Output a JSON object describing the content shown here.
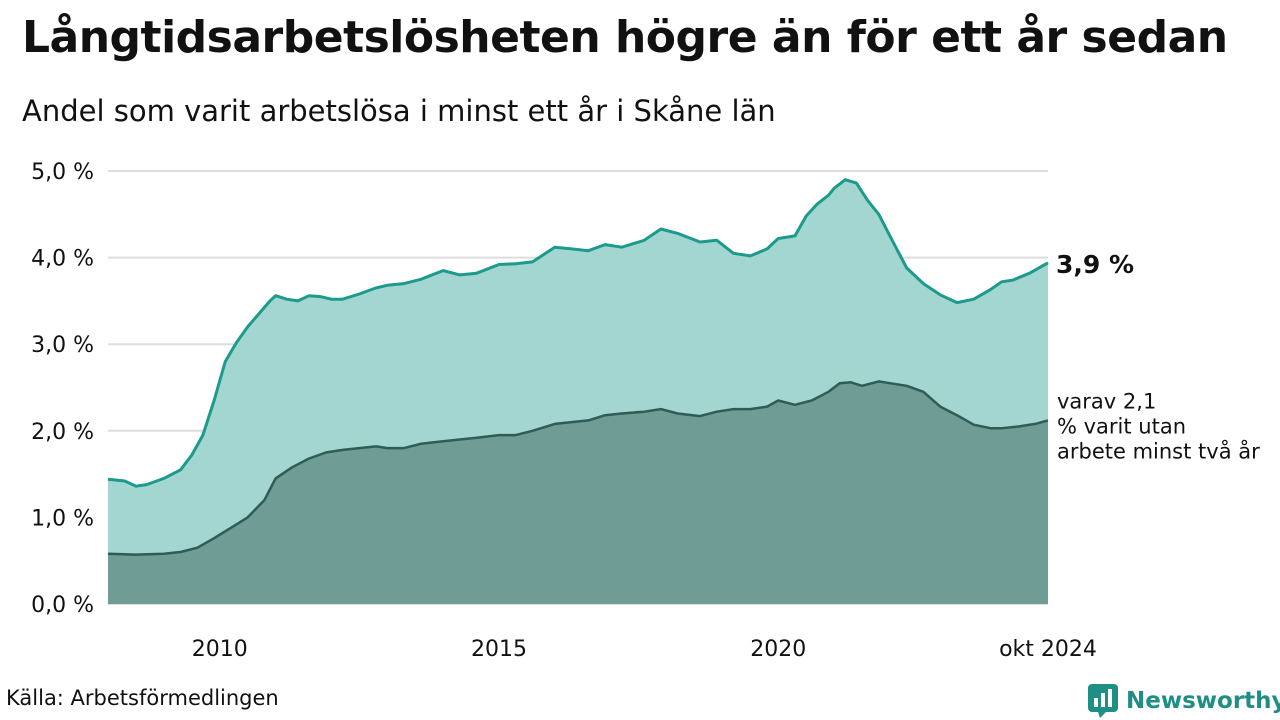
{
  "header": {
    "title": "Långtidsarbetslösheten högre än för ett år sedan",
    "subtitle": "Andel som varit arbetslösa i minst ett år i Skåne län"
  },
  "footer": {
    "source": "Källa: Arbetsförmedlingen",
    "brand": "Newsworthy",
    "brand_icon": "newsworthy-logo-icon"
  },
  "colors": {
    "series1_line": "#1c9a8c",
    "series1_fill": "#a3d6d0",
    "series2_line": "#2f5d55",
    "series2_fill": "#6f9c94",
    "grid": "#dddddd",
    "brand": "#1f8f86"
  },
  "chart_data": {
    "type": "area",
    "xlim": [
      2008.0,
      2024.83
    ],
    "ylim": [
      0,
      5
    ],
    "y_ticks": [
      {
        "value": 0,
        "label": "0,0 %"
      },
      {
        "value": 1,
        "label": "1,0 %"
      },
      {
        "value": 2,
        "label": "2,0 %"
      },
      {
        "value": 3,
        "label": "3,0 %"
      },
      {
        "value": 4,
        "label": "4,0 %"
      },
      {
        "value": 5,
        "label": "5,0 %"
      }
    ],
    "x_ticks": [
      {
        "value": 2010,
        "label": "2010"
      },
      {
        "value": 2015,
        "label": "2015"
      },
      {
        "value": 2020,
        "label": "2020"
      },
      {
        "value": 2024.83,
        "label": "okt 2024"
      }
    ],
    "grid": true,
    "series": [
      {
        "end_label": "3,9 %",
        "x": [
          2008.0,
          2008.3,
          2008.5,
          2008.7,
          2009.0,
          2009.3,
          2009.5,
          2009.7,
          2009.9,
          2010.1,
          2010.3,
          2010.5,
          2010.7,
          2010.9,
          2011.0,
          2011.2,
          2011.4,
          2011.6,
          2011.8,
          2012.0,
          2012.2,
          2012.5,
          2012.8,
          2013.0,
          2013.3,
          2013.6,
          2014.0,
          2014.3,
          2014.6,
          2015.0,
          2015.3,
          2015.6,
          2016.0,
          2016.3,
          2016.6,
          2016.9,
          2017.2,
          2017.6,
          2017.9,
          2018.2,
          2018.6,
          2018.9,
          2019.2,
          2019.5,
          2019.8,
          2020.0,
          2020.3,
          2020.5,
          2020.7,
          2020.9,
          2021.0,
          2021.2,
          2021.4,
          2021.6,
          2021.8,
          2022.0,
          2022.3,
          2022.6,
          2022.9,
          2023.2,
          2023.5,
          2023.8,
          2024.0,
          2024.2,
          2024.5,
          2024.83
        ],
        "values": [
          1.44,
          1.42,
          1.36,
          1.38,
          1.45,
          1.55,
          1.72,
          1.95,
          2.35,
          2.8,
          3.02,
          3.2,
          3.35,
          3.5,
          3.56,
          3.52,
          3.5,
          3.56,
          3.55,
          3.52,
          3.52,
          3.58,
          3.65,
          3.68,
          3.7,
          3.75,
          3.85,
          3.8,
          3.82,
          3.92,
          3.93,
          3.95,
          4.12,
          4.1,
          4.08,
          4.15,
          4.12,
          4.2,
          4.33,
          4.28,
          4.18,
          4.2,
          4.05,
          4.02,
          4.1,
          4.22,
          4.25,
          4.48,
          4.62,
          4.72,
          4.8,
          4.9,
          4.86,
          4.66,
          4.5,
          4.25,
          3.88,
          3.7,
          3.57,
          3.48,
          3.52,
          3.63,
          3.72,
          3.74,
          3.82,
          3.94
        ]
      },
      {
        "end_label": "varav 2,1 % varit utan arbete minst två år",
        "x": [
          2008.0,
          2008.5,
          2009.0,
          2009.3,
          2009.6,
          2009.9,
          2010.2,
          2010.5,
          2010.8,
          2011.0,
          2011.3,
          2011.6,
          2011.9,
          2012.2,
          2012.5,
          2012.8,
          2013.0,
          2013.3,
          2013.6,
          2014.0,
          2014.3,
          2014.6,
          2015.0,
          2015.3,
          2015.6,
          2016.0,
          2016.3,
          2016.6,
          2016.9,
          2017.2,
          2017.6,
          2017.9,
          2018.2,
          2018.6,
          2018.9,
          2019.2,
          2019.5,
          2019.8,
          2020.0,
          2020.3,
          2020.6,
          2020.9,
          2021.1,
          2021.3,
          2021.5,
          2021.8,
          2022.0,
          2022.3,
          2022.6,
          2022.9,
          2023.2,
          2023.5,
          2023.8,
          2024.0,
          2024.3,
          2024.6,
          2024.83
        ],
        "values": [
          0.58,
          0.57,
          0.58,
          0.6,
          0.65,
          0.76,
          0.88,
          1.0,
          1.2,
          1.45,
          1.58,
          1.68,
          1.75,
          1.78,
          1.8,
          1.82,
          1.8,
          1.8,
          1.85,
          1.88,
          1.9,
          1.92,
          1.95,
          1.95,
          2.0,
          2.08,
          2.1,
          2.12,
          2.18,
          2.2,
          2.22,
          2.25,
          2.2,
          2.17,
          2.22,
          2.25,
          2.25,
          2.28,
          2.35,
          2.3,
          2.35,
          2.45,
          2.55,
          2.56,
          2.52,
          2.57,
          2.55,
          2.52,
          2.45,
          2.28,
          2.18,
          2.07,
          2.03,
          2.03,
          2.05,
          2.08,
          2.12
        ]
      }
    ]
  }
}
